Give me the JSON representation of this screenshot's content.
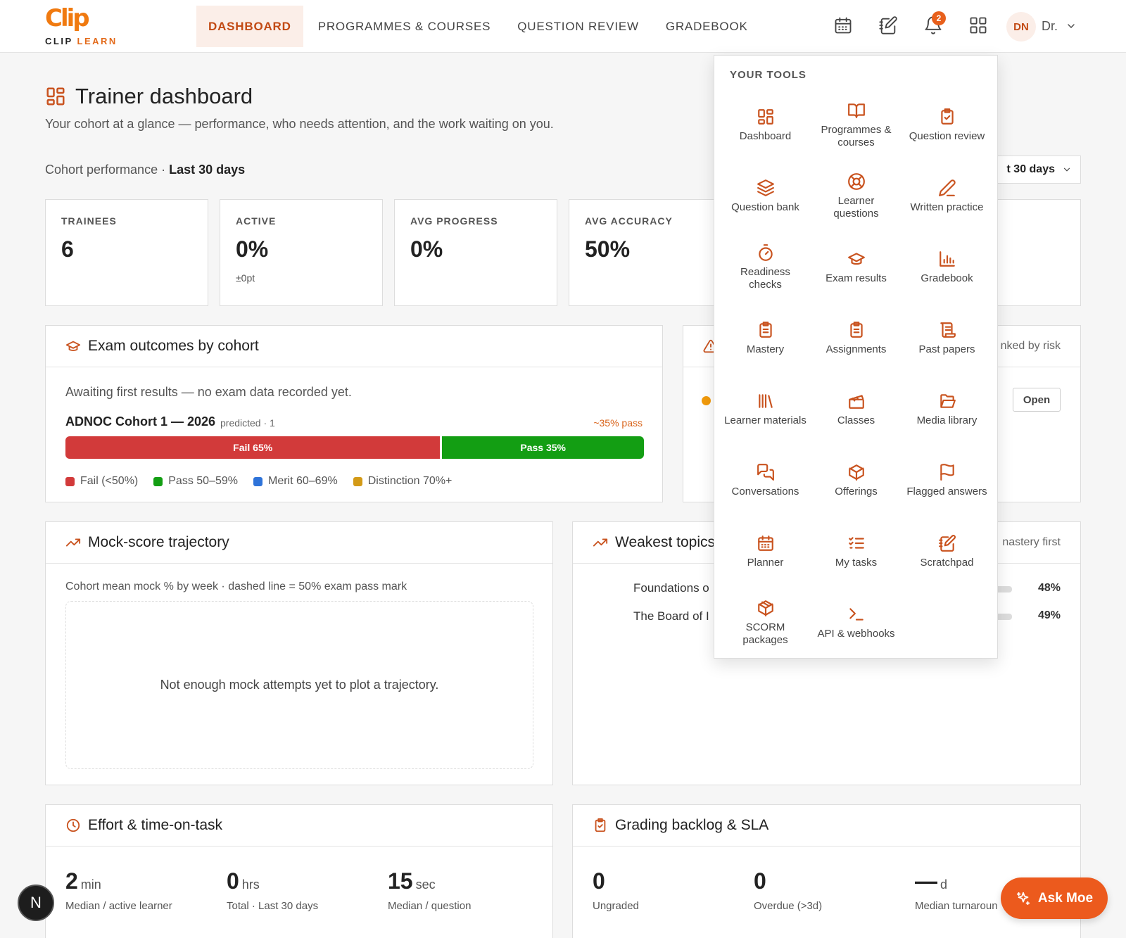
{
  "brand": {
    "mark": "Clip",
    "word_main": "CLIP ",
    "word_accent": "LEARN"
  },
  "nav": [
    "Dashboard",
    "Programmes & Courses",
    "Question Review",
    "Gradebook"
  ],
  "header": {
    "notification_count": "2",
    "avatar_initials": "DN",
    "user_name": "Dr."
  },
  "page": {
    "title": "Trainer dashboard",
    "subtitle": "Your cohort at a glance — performance, who needs attention, and the work waiting on you.",
    "perf_prefix": "Cohort performance · ",
    "perf_range": "Last 30 days",
    "range_select": "t 30 days"
  },
  "stats": [
    {
      "label": "Trainees",
      "value": "6",
      "sub": ""
    },
    {
      "label": "Active",
      "value": "0%",
      "sub": "±0pt"
    },
    {
      "label": "Avg progress",
      "value": "0%",
      "sub": ""
    },
    {
      "label": "Avg accuracy",
      "value": "50%",
      "sub": ""
    }
  ],
  "exam": {
    "title": "Exam outcomes by cohort",
    "note": "Awaiting first results — no exam data recorded yet.",
    "cohort": "ADNOC Cohort 1 — 2026",
    "meta": "predicted · 1",
    "pass_hint": "~35% pass",
    "fail_label": "Fail 65%",
    "fail_pct": 65,
    "pass_label": "Pass 35%",
    "pass_pct": 35,
    "legend": [
      "Fail (<50%)",
      "Pass 50–59%",
      "Merit 60–69%",
      "Distinction 70%+"
    ]
  },
  "risk": {
    "right_text": "nked by risk",
    "open_label": "Open"
  },
  "mock": {
    "title": "Mock-score trajectory",
    "note": "Cohort mean mock % by week · dashed line = 50% exam pass mark",
    "empty": "Not enough mock attempts yet to plot a trajectory."
  },
  "weakest": {
    "title": "Weakest topics",
    "right_text": "nastery first",
    "rows": [
      {
        "name": "Foundations o",
        "pct": "48%"
      },
      {
        "name": "The Board of I",
        "pct": "49%"
      }
    ]
  },
  "effort": {
    "title": "Effort & time-on-task",
    "metrics": [
      {
        "value": "2",
        "unit": "min",
        "label": "Median / active learner"
      },
      {
        "value": "0",
        "unit": "hrs",
        "label": "Total · Last 30 days"
      },
      {
        "value": "15",
        "unit": "sec",
        "label": "Median / question"
      }
    ]
  },
  "grading": {
    "title": "Grading backlog & SLA",
    "metrics": [
      {
        "value": "0",
        "unit": "",
        "label": "Ungraded"
      },
      {
        "value": "0",
        "unit": "",
        "label": "Overdue (>3d)"
      },
      {
        "value": "—",
        "unit": "d",
        "label": "Median turnaroun"
      }
    ]
  },
  "tools": {
    "title": "YOUR TOOLS",
    "items": [
      {
        "label": "Dashboard",
        "icon": "dashboard-icon"
      },
      {
        "label": "Programmes & courses",
        "icon": "book-icon"
      },
      {
        "label": "Question review",
        "icon": "clipboard-check-icon"
      },
      {
        "label": "Question bank",
        "icon": "layers-icon"
      },
      {
        "label": "Learner questions",
        "icon": "lifebuoy-icon"
      },
      {
        "label": "Written practice",
        "icon": "pencil-icon"
      },
      {
        "label": "Readiness checks",
        "icon": "stopwatch-icon"
      },
      {
        "label": "Exam results",
        "icon": "graduation-cap-icon"
      },
      {
        "label": "Gradebook",
        "icon": "bar-chart-icon"
      },
      {
        "label": "Mastery",
        "icon": "clipboard-list-icon"
      },
      {
        "label": "Assignments",
        "icon": "clipboard-list-icon"
      },
      {
        "label": "Past papers",
        "icon": "scroll-icon"
      },
      {
        "label": "Learner materials",
        "icon": "library-icon"
      },
      {
        "label": "Classes",
        "icon": "clapperboard-icon"
      },
      {
        "label": "Media library",
        "icon": "folder-open-icon"
      },
      {
        "label": "Conversations",
        "icon": "chat-icon"
      },
      {
        "label": "Offerings",
        "icon": "package-icon"
      },
      {
        "label": "Flagged answers",
        "icon": "flag-icon"
      },
      {
        "label": "Planner",
        "icon": "calendar-icon"
      },
      {
        "label": "My tasks",
        "icon": "task-list-icon"
      },
      {
        "label": "Scratchpad",
        "icon": "notebook-pen-icon"
      },
      {
        "label": "SCORM packages",
        "icon": "package-icon"
      },
      {
        "label": "API & webhooks",
        "icon": "terminal-icon"
      }
    ]
  },
  "floating": {
    "next_label": "N",
    "ask_label": "Ask Moe"
  },
  "colors": {
    "accent": "#c9531f",
    "fail": "#d23a3a",
    "pass": "#139e13",
    "merit": "#2e73d9",
    "distinction": "#d39a17"
  }
}
